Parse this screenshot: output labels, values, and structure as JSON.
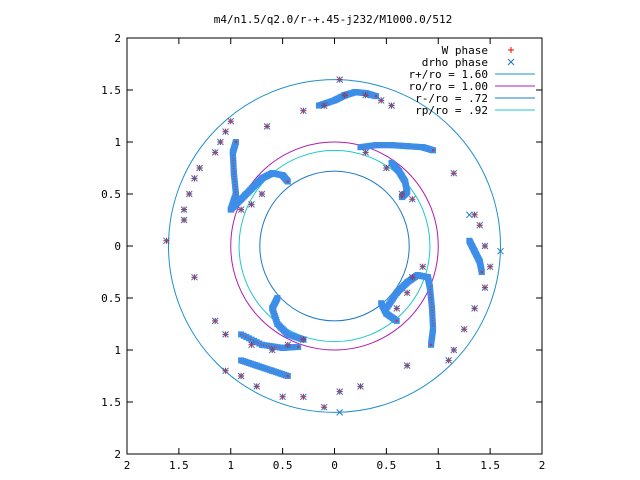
{
  "chart_data": {
    "type": "scatter",
    "title": "m4/n1.5/q2.0/r-+.45-j232/M1000.0/512",
    "xlabel": "",
    "ylabel": "",
    "xlim": [
      -2,
      2
    ],
    "ylim": [
      -2,
      2
    ],
    "x_tick_values": [
      -2,
      -1.5,
      -1,
      -0.5,
      0,
      0.5,
      1,
      1.5,
      2
    ],
    "x_tick_labels": [
      "2",
      "1.5",
      "1",
      "0.5",
      "0",
      "0.5",
      "1",
      "1.5",
      "2"
    ],
    "y_tick_values": [
      2,
      1.5,
      1,
      0.5,
      0,
      -0.5,
      -1,
      -1.5,
      -2
    ],
    "y_tick_labels": [
      "2",
      "1.5",
      "1",
      "0.5",
      "0",
      "0.5",
      "1",
      "1.5",
      "2"
    ],
    "grid": false,
    "legend_position": "top-right",
    "circles": [
      {
        "name": "r+/ro = 1.60",
        "radius": 1.6,
        "color": "#1e90c8"
      },
      {
        "name": "ro/ro = 1.00",
        "radius": 1.0,
        "color": "#b01cb0"
      },
      {
        "name": "r-/ro = .72",
        "radius": 0.72,
        "color": "#1e78c8"
      },
      {
        "name": "rp/ro = .92",
        "radius": 0.92,
        "color": "#20c8c8"
      }
    ],
    "series": [
      {
        "name": "W phase",
        "marker": "+",
        "color": "#ff0000",
        "points": [
          [
            -1.62,
            0.05
          ],
          [
            -1.45,
            0.25
          ],
          [
            -1.45,
            0.35
          ],
          [
            -1.4,
            0.5
          ],
          [
            -1.35,
            0.65
          ],
          [
            -1.3,
            0.75
          ],
          [
            -1.15,
            0.9
          ],
          [
            -1.1,
            1.0
          ],
          [
            -1.05,
            1.1
          ],
          [
            -1.0,
            1.2
          ],
          [
            -0.65,
            1.15
          ],
          [
            0.05,
            1.6
          ],
          [
            -0.3,
            1.3
          ],
          [
            -0.1,
            1.35
          ],
          [
            0.1,
            1.45
          ],
          [
            0.3,
            1.45
          ],
          [
            0.45,
            1.4
          ],
          [
            0.55,
            1.35
          ],
          [
            1.15,
            0.7
          ],
          [
            1.35,
            0.3
          ],
          [
            1.4,
            0.2
          ],
          [
            1.45,
            0.0
          ],
          [
            1.5,
            -0.2
          ],
          [
            1.45,
            -0.4
          ],
          [
            1.35,
            -0.6
          ],
          [
            1.25,
            -0.8
          ],
          [
            1.15,
            -1.0
          ],
          [
            1.1,
            -1.1
          ],
          [
            0.7,
            -1.15
          ],
          [
            0.25,
            -1.35
          ],
          [
            0.05,
            -1.4
          ],
          [
            -0.1,
            -1.55
          ],
          [
            -0.3,
            -1.45
          ],
          [
            -0.5,
            -1.45
          ],
          [
            -0.75,
            -1.35
          ],
          [
            -0.9,
            -1.25
          ],
          [
            -1.05,
            -1.2
          ],
          [
            -1.15,
            -0.72
          ],
          [
            -0.3,
            -0.9
          ],
          [
            -0.45,
            -0.95
          ],
          [
            -0.6,
            -1.0
          ],
          [
            -0.8,
            -0.95
          ],
          [
            -1.05,
            -0.85
          ],
          [
            -1.35,
            -0.3
          ],
          [
            0.6,
            -0.6
          ],
          [
            0.7,
            -0.45
          ],
          [
            0.75,
            -0.3
          ],
          [
            0.85,
            -0.2
          ],
          [
            -0.7,
            0.5
          ],
          [
            -0.8,
            0.4
          ],
          [
            -0.9,
            0.35
          ],
          [
            0.3,
            0.9
          ],
          [
            0.5,
            0.75
          ],
          [
            0.65,
            0.5
          ],
          [
            0.75,
            0.45
          ]
        ]
      },
      {
        "name": "drho phase",
        "marker": "x",
        "color": "#1e78c8",
        "points": [
          [
            -1.62,
            0.05
          ],
          [
            -1.45,
            0.25
          ],
          [
            -1.45,
            0.35
          ],
          [
            -1.4,
            0.5
          ],
          [
            -1.35,
            0.65
          ],
          [
            -1.3,
            0.75
          ],
          [
            -1.15,
            0.9
          ],
          [
            -1.1,
            1.0
          ],
          [
            -1.05,
            1.1
          ],
          [
            -1.0,
            1.2
          ],
          [
            -0.65,
            1.15
          ],
          [
            0.05,
            1.6
          ],
          [
            -0.3,
            1.3
          ],
          [
            -0.1,
            1.35
          ],
          [
            0.1,
            1.45
          ],
          [
            0.3,
            1.45
          ],
          [
            0.45,
            1.4
          ],
          [
            0.55,
            1.35
          ],
          [
            1.15,
            0.7
          ],
          [
            1.35,
            0.3
          ],
          [
            1.4,
            0.2
          ],
          [
            1.45,
            0.0
          ],
          [
            1.5,
            -0.2
          ],
          [
            1.45,
            -0.4
          ],
          [
            1.35,
            -0.6
          ],
          [
            1.25,
            -0.8
          ],
          [
            1.15,
            -1.0
          ],
          [
            1.1,
            -1.1
          ],
          [
            0.7,
            -1.15
          ],
          [
            0.25,
            -1.35
          ],
          [
            0.05,
            -1.4
          ],
          [
            -0.1,
            -1.55
          ],
          [
            -0.3,
            -1.45
          ],
          [
            -0.5,
            -1.45
          ],
          [
            -0.75,
            -1.35
          ],
          [
            -0.9,
            -1.25
          ],
          [
            -1.05,
            -1.2
          ],
          [
            -1.15,
            -0.72
          ],
          [
            -0.3,
            -0.9
          ],
          [
            -0.45,
            -0.95
          ],
          [
            -0.6,
            -1.0
          ],
          [
            -0.8,
            -0.95
          ],
          [
            -1.05,
            -0.85
          ],
          [
            -1.35,
            -0.3
          ],
          [
            0.6,
            -0.6
          ],
          [
            0.7,
            -0.45
          ],
          [
            0.75,
            -0.3
          ],
          [
            0.85,
            -0.2
          ],
          [
            -0.7,
            0.5
          ],
          [
            -0.8,
            0.4
          ],
          [
            -0.9,
            0.35
          ],
          [
            0.3,
            0.9
          ],
          [
            0.5,
            0.75
          ],
          [
            0.65,
            0.5
          ],
          [
            0.75,
            0.45
          ],
          [
            1.3,
            0.3
          ],
          [
            0.05,
            -1.6
          ],
          [
            1.6,
            -0.05
          ]
        ]
      }
    ],
    "dense_arms": [
      [
        [
          -1.0,
          0.35
        ],
        [
          -0.95,
          0.5
        ],
        [
          -0.97,
          0.7
        ],
        [
          -0.98,
          0.9
        ],
        [
          -0.95,
          1.0
        ]
      ],
      [
        [
          -1.0,
          0.35
        ],
        [
          -0.9,
          0.45
        ],
        [
          -0.8,
          0.55
        ],
        [
          -0.7,
          0.65
        ],
        [
          -0.6,
          0.7
        ],
        [
          -0.5,
          0.68
        ],
        [
          -0.45,
          0.62
        ]
      ],
      [
        [
          -0.15,
          1.35
        ],
        [
          0.0,
          1.4
        ],
        [
          0.1,
          1.45
        ],
        [
          0.2,
          1.48
        ],
        [
          0.3,
          1.47
        ],
        [
          0.4,
          1.44
        ]
      ],
      [
        [
          0.25,
          0.95
        ],
        [
          0.4,
          0.97
        ],
        [
          0.55,
          0.97
        ],
        [
          0.7,
          0.96
        ],
        [
          0.85,
          0.95
        ],
        [
          0.95,
          0.92
        ]
      ],
      [
        [
          0.55,
          0.8
        ],
        [
          0.62,
          0.72
        ],
        [
          0.68,
          0.62
        ],
        [
          0.7,
          0.52
        ],
        [
          0.65,
          0.47
        ]
      ],
      [
        [
          0.9,
          -0.3
        ],
        [
          0.92,
          -0.4
        ],
        [
          0.94,
          -0.6
        ],
        [
          0.95,
          -0.8
        ],
        [
          0.93,
          -0.95
        ]
      ],
      [
        [
          0.9,
          -0.3
        ],
        [
          0.8,
          -0.28
        ],
        [
          0.7,
          -0.35
        ],
        [
          0.6,
          -0.45
        ],
        [
          0.5,
          -0.6
        ]
      ],
      [
        [
          -0.55,
          -0.5
        ],
        [
          -0.6,
          -0.6
        ],
        [
          -0.55,
          -0.75
        ],
        [
          -0.45,
          -0.85
        ],
        [
          -0.3,
          -0.9
        ]
      ],
      [
        [
          -0.9,
          -1.1
        ],
        [
          -0.75,
          -1.15
        ],
        [
          -0.6,
          -1.2
        ],
        [
          -0.45,
          -1.25
        ]
      ],
      [
        [
          -0.9,
          -0.85
        ],
        [
          -0.7,
          -0.95
        ],
        [
          -0.5,
          -0.98
        ],
        [
          -0.35,
          -0.97
        ]
      ],
      [
        [
          1.3,
          0.05
        ],
        [
          1.35,
          -0.05
        ],
        [
          1.4,
          -0.15
        ],
        [
          1.42,
          -0.25
        ]
      ],
      [
        [
          0.45,
          -0.55
        ],
        [
          0.5,
          -0.65
        ],
        [
          0.6,
          -0.72
        ]
      ]
    ]
  }
}
